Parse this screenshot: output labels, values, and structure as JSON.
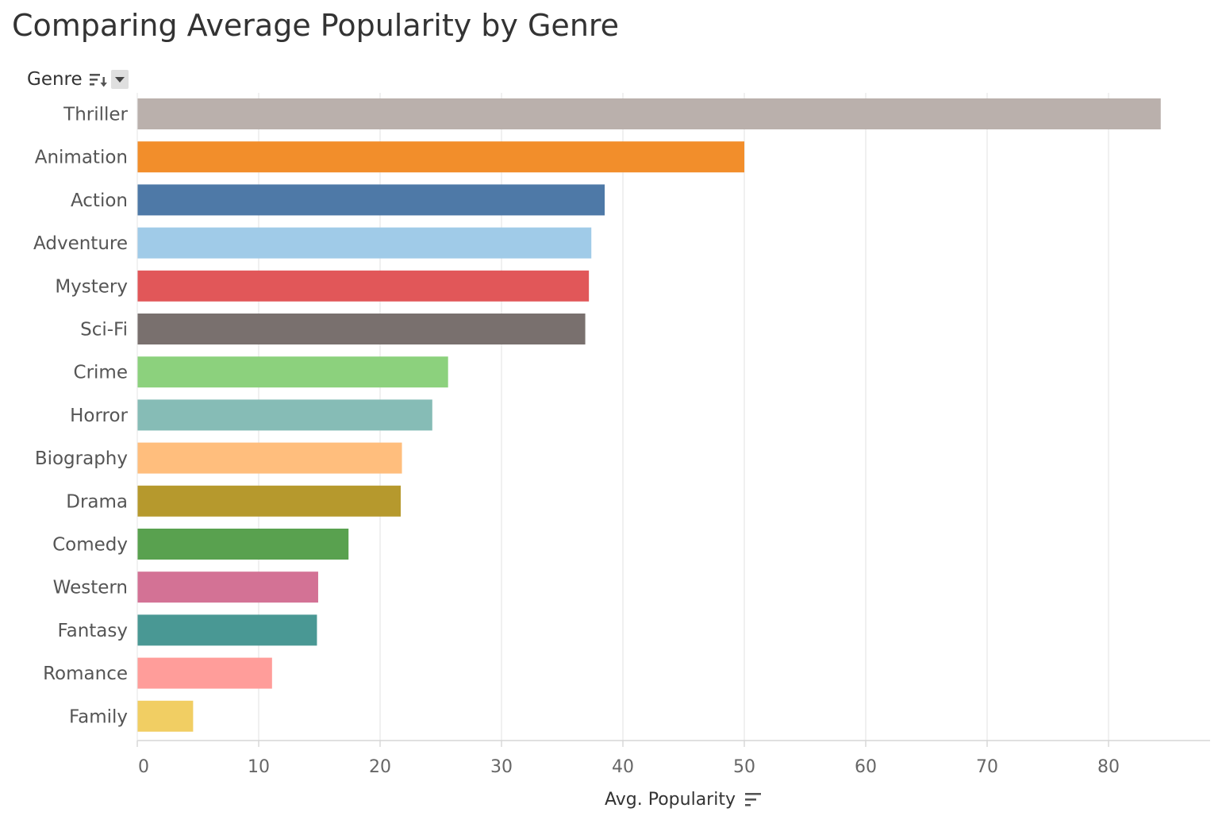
{
  "title": "Comparing Average Popularity by Genre",
  "row_header": {
    "label": "Genre",
    "sort_icon": "sort-descending-icon",
    "dropdown_icon": "caret-down-icon"
  },
  "axis": {
    "title": "Avg. Popularity",
    "sort_icon": "sort-icon"
  },
  "chart_data": {
    "type": "bar",
    "orientation": "horizontal",
    "categories": [
      "Thriller",
      "Animation",
      "Action",
      "Adventure",
      "Mystery",
      "Sci-Fi",
      "Crime",
      "Horror",
      "Biography",
      "Drama",
      "Comedy",
      "Western",
      "Fantasy",
      "Romance",
      "Family"
    ],
    "values": [
      84.3,
      50.0,
      38.5,
      37.4,
      37.2,
      36.9,
      25.6,
      24.3,
      21.8,
      21.7,
      17.4,
      14.9,
      14.8,
      11.1,
      4.6
    ],
    "colors": [
      "#bab0ac",
      "#f28e2b",
      "#4e79a7",
      "#a0cbe8",
      "#e15759",
      "#79706e",
      "#8cd17d",
      "#86bcb6",
      "#ffbe7d",
      "#b6992d",
      "#59a14f",
      "#d37295",
      "#499894",
      "#ff9d9a",
      "#f1ce63"
    ],
    "xlabel": "Avg. Popularity",
    "ylabel": "Genre",
    "xlim": [
      0,
      88
    ],
    "xticks": [
      0,
      10,
      20,
      30,
      40,
      50,
      60,
      70,
      80
    ],
    "grid": true,
    "legend": "none"
  }
}
